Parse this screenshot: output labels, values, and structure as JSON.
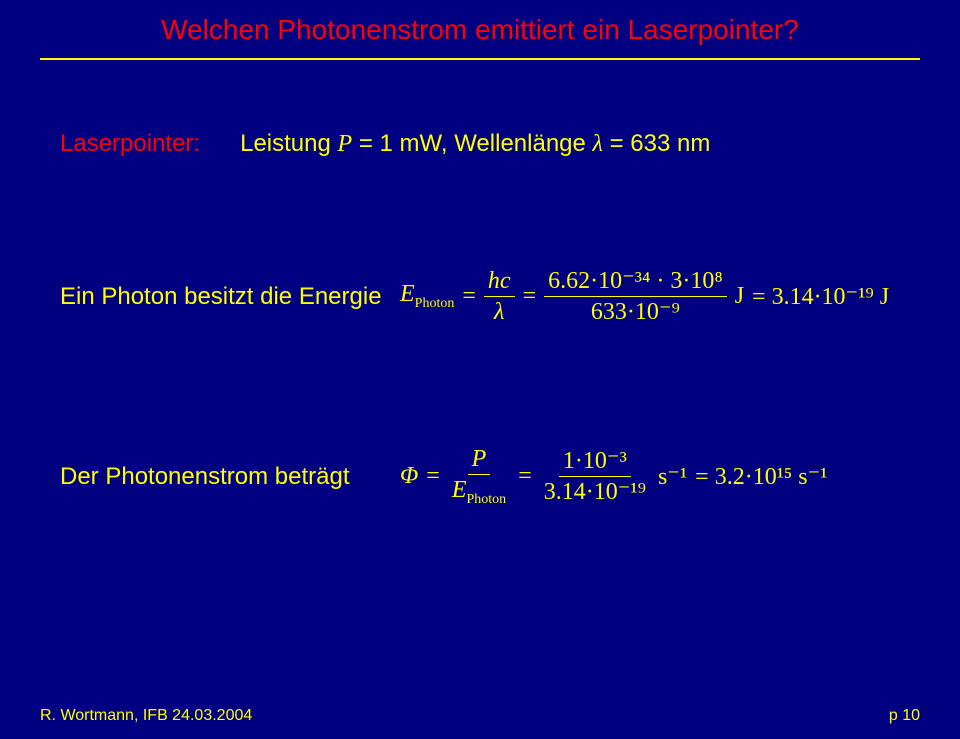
{
  "colors": {
    "background": "#000080",
    "title": "#ff0000",
    "rule": "#ffff00",
    "text": "#ffff00",
    "label": "#ff0000"
  },
  "title": "Welchen Photonenstrom emittiert ein Laserpointer?",
  "line1": {
    "label": "Laserpointer:",
    "power_text_prefix": "Leistung ",
    "power_var": "P",
    "power_text_mid": " = 1 mW,   Wellenlänge ",
    "lambda_var": "λ",
    "lambda_text": " = 633 nm"
  },
  "line2": {
    "text": "Ein Photon besitzt die Energie",
    "eq": {
      "lhs_var": "E",
      "lhs_sub": "Photon",
      "eq1": "=",
      "frac1_num": "hc",
      "frac1_den": "λ",
      "eq2": "=",
      "frac2_num": "6.62·10⁻³⁴ · 3·10⁸",
      "frac2_den": "633·10⁻⁹",
      "unit1": " J",
      "eq3": "= 3.14·10⁻¹⁹ J"
    }
  },
  "line3": {
    "text": "Der Photonenstrom beträgt",
    "eq": {
      "lhs_var": "Φ",
      "eq1": "=",
      "frac1_num": "P",
      "frac1_den_var": "E",
      "frac1_den_sub": "Photon",
      "eq2": "=",
      "frac2_num": "1·10⁻³",
      "frac2_den": "3.14·10⁻¹⁹",
      "unit1": " s⁻¹",
      "eq3": "= 3.2·10¹⁵ s⁻¹"
    }
  },
  "footer": {
    "left": "R. Wortmann, IFB  24.03.2004",
    "right": "p 10"
  }
}
